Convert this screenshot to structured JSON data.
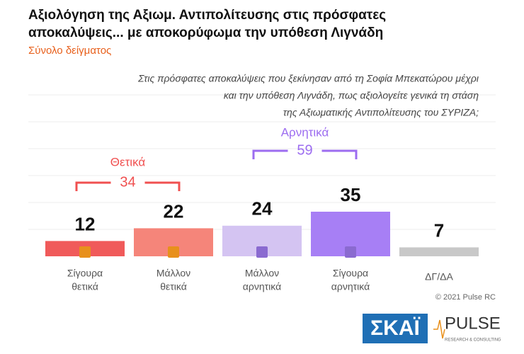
{
  "chart_data": {
    "type": "bar",
    "title": [
      "Αξιολόγηση της Αξιωμ. Αντιπολίτευσης στις πρόσφατες",
      "αποκαλύψεις... με αποκορύφωμα την υπόθεση Λιγνάδη"
    ],
    "subtitle": "Σύνολο δείγματος",
    "question": [
      "Στις πρόσφατες αποκαλύψεις που ξεκίνησαν από τη Σοφία Μπεκατώρου μέχρι",
      "και την υπόθεση Λιγνάδη, πως αξιολογείτε γενικά τη στάση",
      "της Αξιωματικής Αντιπολίτευσης του ΣΥΡΙΖΑ;"
    ],
    "categories": [
      [
        "Σίγουρα",
        "θετικά"
      ],
      [
        "Μάλλον",
        "θετικά"
      ],
      [
        "Μάλλον",
        "αρνητικά"
      ],
      [
        "Σίγουρα",
        "αρνητικά"
      ],
      [
        "ΔΓ/ΔΑ"
      ]
    ],
    "values": [
      12,
      22,
      24,
      35,
      7
    ],
    "colors": [
      "#f05a5a",
      "#f5857a",
      "#d4c4f2",
      "#a77ff5",
      "#c8c8c8"
    ],
    "groups": [
      {
        "label": "Θετικά",
        "value": 34,
        "color": "#f05050"
      },
      {
        "label": "Αρνητικά",
        "value": 59,
        "color": "#9c6cf0"
      }
    ],
    "copyright": "© 2021 Pulse RC",
    "logos": {
      "skai": "ΣΚΑΪ",
      "pulse": "PULSE",
      "pulse_sub": "RESEARCH & CONSULTING"
    }
  }
}
